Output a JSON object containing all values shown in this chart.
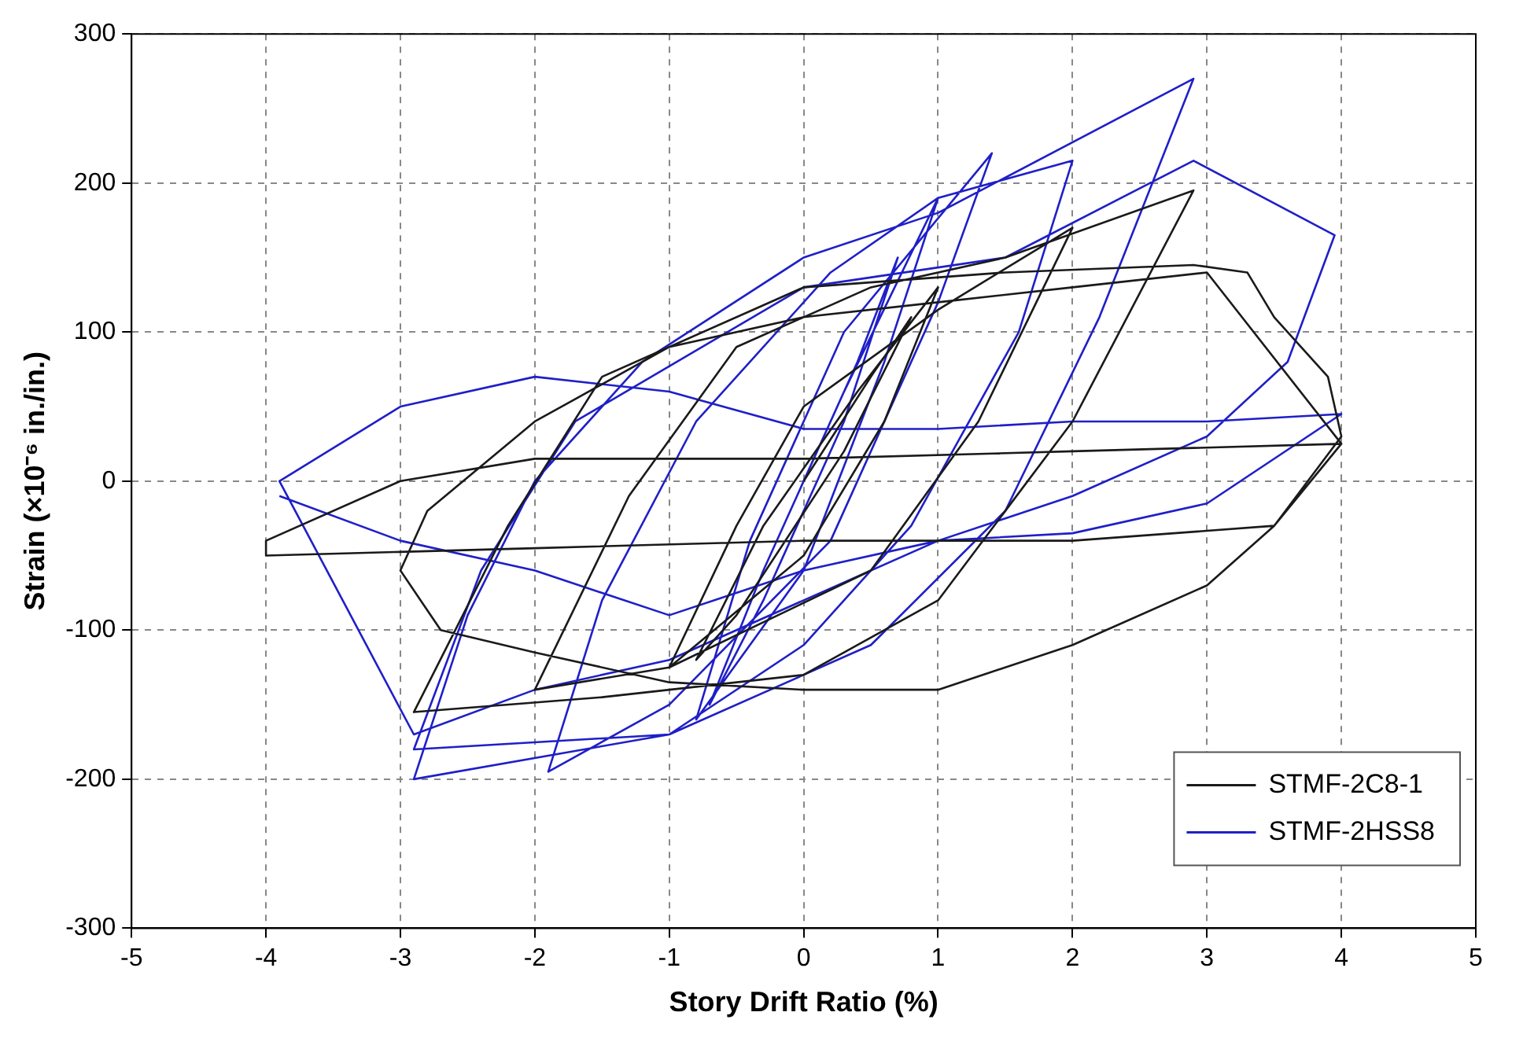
{
  "chart_data": {
    "type": "line",
    "xlabel": "Story Drift Ratio (%)",
    "ylabel": "Strain (×10⁻⁶ in./in.)",
    "xlim": [
      -5,
      5
    ],
    "ylim": [
      -300,
      300
    ],
    "xticks": [
      -5,
      -4,
      -3,
      -2,
      -1,
      0,
      1,
      2,
      3,
      4,
      5
    ],
    "yticks": [
      -300,
      -200,
      -100,
      0,
      100,
      200,
      300
    ],
    "grid": true,
    "legend": "bottom right",
    "marker": "none",
    "line_style": "solid",
    "series": [
      {
        "name": "STMF-2C8-1",
        "color": "#1a1a1a",
        "x": [
          0,
          0.5,
          0.8,
          0.3,
          -0.5,
          -0.8,
          -0.3,
          0.4,
          1.0,
          0.6,
          0,
          -1,
          -0.5,
          0,
          1,
          2,
          1.3,
          0.5,
          -1,
          -2,
          -1.3,
          -0.5,
          0.5,
          1.5,
          2.9,
          2,
          1,
          0,
          -1.5,
          -2.9,
          -2.2,
          -1.5,
          0,
          1.5,
          2.9,
          3.3,
          3.5,
          3.9,
          4,
          3.5,
          3,
          2,
          1,
          0,
          -1,
          -2,
          -2.7,
          -3,
          -2.8,
          -2,
          -1,
          0,
          1,
          2,
          3,
          4,
          3.5,
          2,
          0,
          -2,
          -4,
          -4,
          -3,
          -2,
          0,
          2,
          4
        ],
        "values": [
          0,
          70,
          110,
          20,
          -90,
          -120,
          -30,
          60,
          130,
          40,
          -50,
          -125,
          -30,
          50,
          115,
          170,
          40,
          -60,
          -125,
          -140,
          -10,
          90,
          130,
          150,
          195,
          40,
          -80,
          -130,
          -145,
          -155,
          -30,
          70,
          130,
          140,
          145,
          140,
          110,
          70,
          30,
          -30,
          -70,
          -110,
          -140,
          -140,
          -135,
          -115,
          -100,
          -60,
          -20,
          40,
          90,
          110,
          120,
          130,
          140,
          25,
          -30,
          -40,
          -40,
          -45,
          -50,
          -40,
          0,
          15,
          15,
          20,
          25
        ]
      },
      {
        "name": "STMF-2HSS8",
        "color": "#1f1fc8",
        "x": [
          0,
          0.4,
          0.7,
          0.3,
          -0.3,
          -0.7,
          -0.3,
          0.3,
          1.0,
          0.6,
          0,
          -0.8,
          -0.4,
          0.3,
          1.4,
          1.0,
          0.2,
          -1,
          -1.9,
          -1.5,
          -0.8,
          0.2,
          1.0,
          2,
          1.6,
          0.8,
          0,
          -1,
          -2.9,
          -2.5,
          -2,
          -1.2,
          0,
          1,
          2.9,
          2.2,
          1.5,
          0.5,
          -1,
          -2.9,
          -2.4,
          -1.7,
          0,
          1.5,
          2.9,
          3.95,
          3.6,
          3,
          2,
          1,
          0,
          -1,
          -2,
          -2.9,
          -3.9,
          -3,
          -2,
          -1,
          0,
          1,
          2,
          3,
          4,
          3,
          2,
          1,
          0,
          -1,
          -2,
          -3,
          -3.9
        ],
        "values": [
          0,
          80,
          150,
          40,
          -80,
          -150,
          -60,
          60,
          190,
          80,
          -60,
          -160,
          -40,
          100,
          220,
          120,
          -40,
          -150,
          -195,
          -80,
          40,
          140,
          190,
          215,
          100,
          -30,
          -110,
          -170,
          -200,
          -90,
          0,
          80,
          150,
          180,
          270,
          110,
          -20,
          -110,
          -170,
          -180,
          -60,
          40,
          130,
          150,
          215,
          165,
          80,
          30,
          -10,
          -40,
          -80,
          -120,
          -140,
          -170,
          0,
          50,
          70,
          60,
          35,
          35,
          40,
          40,
          45,
          -15,
          -35,
          -40,
          -60,
          -90,
          -60,
          -40,
          -10
        ]
      }
    ]
  }
}
